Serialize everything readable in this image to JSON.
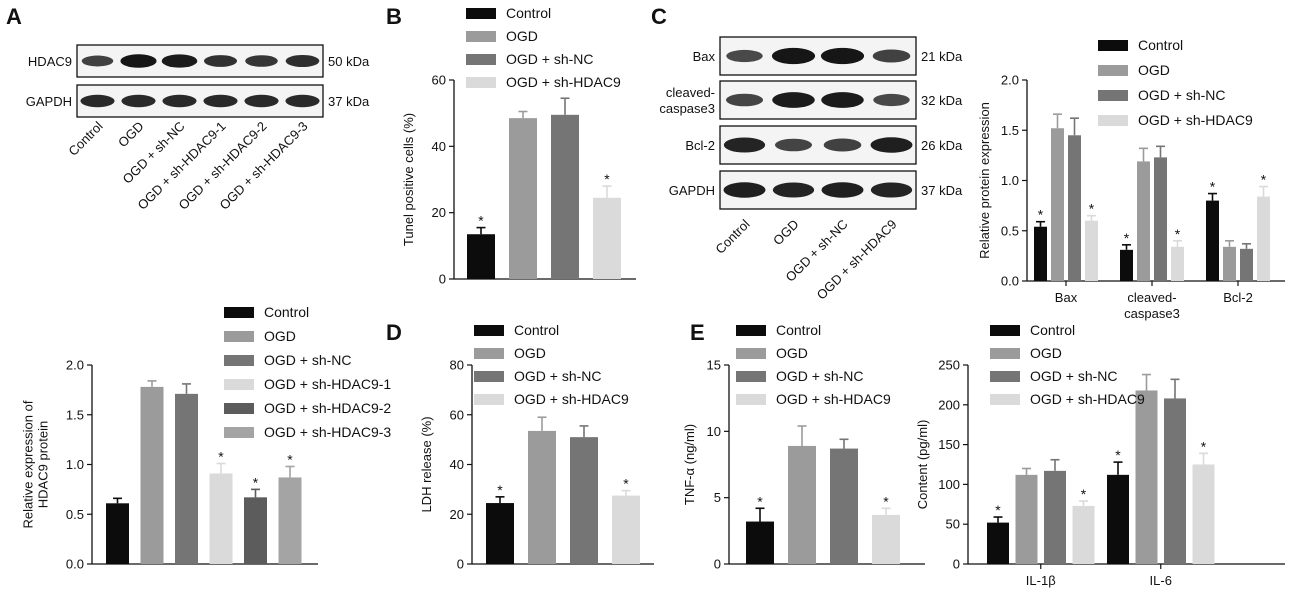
{
  "panels": {
    "A": "A",
    "B": "B",
    "C": "C",
    "D": "D",
    "E": "E"
  },
  "colors": {
    "Control": "#0c0c0c",
    "OGD": "#9b9b9b",
    "OGD + sh-NC": "#757575",
    "OGD + sh-HDAC9": "#dadada",
    "OGD + sh-HDAC9-1": "#dadada",
    "OGD + sh-HDAC9-2": "#5c5c5c",
    "OGD + sh-HDAC9-3": "#a4a4a4"
  },
  "blots": {
    "A": {
      "rows": [
        {
          "label": "HDAC9",
          "kda": "50 kDa"
        },
        {
          "label": "GAPDH",
          "kda": "37 kDa"
        }
      ],
      "lanes": [
        "Control",
        "OGD",
        "OGD + sh-NC",
        "OGD + sh-HDAC9-1",
        "OGD + sh-HDAC9-2",
        "OGD + sh-HDAC9-3"
      ]
    },
    "C": {
      "rows": [
        {
          "label": "Bax",
          "kda": "21 kDa"
        },
        {
          "label": "cleaved-caspase3",
          "kda": "32 kDa"
        },
        {
          "label": "Bcl-2",
          "kda": "26 kDa"
        },
        {
          "label": "GAPDH",
          "kda": "37 kDa"
        }
      ],
      "lanes": [
        "Control",
        "OGD",
        "OGD + sh-NC",
        "OGD + sh-HDAC9"
      ]
    }
  },
  "chart_data": [
    {
      "id": "A_bar",
      "type": "bar",
      "title": "",
      "categories": [
        "Control",
        "OGD",
        "OGD + sh-NC",
        "OGD + sh-HDAC9-1",
        "OGD + sh-HDAC9-2",
        "OGD + sh-HDAC9-3"
      ],
      "values": [
        0.61,
        1.78,
        1.71,
        0.91,
        0.67,
        0.87
      ],
      "errors": [
        0.05,
        0.06,
        0.1,
        0.1,
        0.08,
        0.11
      ],
      "significant": [
        false,
        false,
        false,
        true,
        true,
        true
      ],
      "xlabel": "",
      "ylabel": "Relative expression of HDAC9 protein",
      "ylim": [
        0,
        2.0
      ],
      "yticks": [
        "0.0",
        "0.5",
        "1.0",
        "1.5",
        "2.0"
      ],
      "legend": [
        "Control",
        "OGD",
        "OGD + sh-NC",
        "OGD + sh-HDAC9-1",
        "OGD + sh-HDAC9-2",
        "OGD + sh-HDAC9-3"
      ],
      "legend_position": "top-right"
    },
    {
      "id": "B_bar",
      "type": "bar",
      "title": "",
      "categories": [
        "Control",
        "OGD",
        "OGD + sh-NC",
        "OGD + sh-HDAC9"
      ],
      "values": [
        13.5,
        48.5,
        49.5,
        24.5
      ],
      "errors": [
        2.0,
        2.0,
        5.0,
        3.5
      ],
      "significant": [
        true,
        false,
        false,
        true
      ],
      "xlabel": "",
      "ylabel": "Tunel positive cells (%)",
      "ylim": [
        0,
        60
      ],
      "yticks": [
        "0",
        "20",
        "40",
        "60"
      ],
      "legend": [
        "Control",
        "OGD",
        "OGD + sh-NC",
        "OGD + sh-HDAC9"
      ],
      "legend_position": "top"
    },
    {
      "id": "C_bar",
      "type": "bar",
      "title": "",
      "categories": [
        "Bax",
        "cleaved-caspase3",
        "Bcl-2"
      ],
      "series": [
        {
          "name": "Control",
          "values": [
            0.54,
            0.31,
            0.8
          ],
          "errors": [
            0.05,
            0.05,
            0.07
          ],
          "significant": [
            true,
            true,
            true
          ]
        },
        {
          "name": "OGD",
          "values": [
            1.52,
            1.19,
            0.34
          ],
          "errors": [
            0.14,
            0.13,
            0.06
          ],
          "significant": [
            false,
            false,
            false
          ]
        },
        {
          "name": "OGD + sh-NC",
          "values": [
            1.45,
            1.23,
            0.32
          ],
          "errors": [
            0.17,
            0.11,
            0.05
          ],
          "significant": [
            false,
            false,
            false
          ]
        },
        {
          "name": "OGD + sh-HDAC9",
          "values": [
            0.6,
            0.34,
            0.84
          ],
          "errors": [
            0.05,
            0.06,
            0.1
          ],
          "significant": [
            true,
            true,
            true
          ]
        }
      ],
      "xlabel": "",
      "ylabel": "Relative protein expression",
      "ylim": [
        0,
        2.0
      ],
      "yticks": [
        "0.0",
        "0.5",
        "1.0",
        "1.5",
        "2.0"
      ],
      "legend_position": "top-right"
    },
    {
      "id": "D_bar",
      "type": "bar",
      "title": "",
      "categories": [
        "Control",
        "OGD",
        "OGD + sh-NC",
        "OGD + sh-HDAC9"
      ],
      "values": [
        24.5,
        53.5,
        51.0,
        27.5
      ],
      "errors": [
        2.5,
        5.5,
        4.5,
        2.0
      ],
      "significant": [
        true,
        false,
        false,
        true
      ],
      "xlabel": "",
      "ylabel": "LDH release (%)",
      "ylim": [
        0,
        80
      ],
      "yticks": [
        "0",
        "20",
        "40",
        "60",
        "80"
      ],
      "legend": [
        "Control",
        "OGD",
        "OGD + sh-NC",
        "OGD + sh-HDAC9"
      ],
      "legend_position": "top"
    },
    {
      "id": "E_tnf",
      "type": "bar",
      "title": "",
      "categories": [
        "Control",
        "OGD",
        "OGD + sh-NC",
        "OGD + sh-HDAC9"
      ],
      "values": [
        3.2,
        8.9,
        8.7,
        3.7
      ],
      "errors": [
        1.0,
        1.5,
        0.7,
        0.5
      ],
      "significant": [
        true,
        false,
        false,
        true
      ],
      "xlabel": "",
      "ylabel": "TNF-α (ng/ml)",
      "ylim": [
        0,
        15
      ],
      "yticks": [
        "0",
        "5",
        "10",
        "15"
      ],
      "legend": [
        "Control",
        "OGD",
        "OGD + sh-NC",
        "OGD + sh-HDAC9"
      ],
      "legend_position": "top"
    },
    {
      "id": "E_il",
      "type": "bar",
      "title": "",
      "categories": [
        "IL-1β",
        "IL-6"
      ],
      "series": [
        {
          "name": "Control",
          "values": [
            52,
            112
          ],
          "errors": [
            7,
            16
          ],
          "significant": [
            true,
            true
          ]
        },
        {
          "name": "OGD",
          "values": [
            112,
            218
          ],
          "errors": [
            8,
            20
          ],
          "significant": [
            false,
            false
          ]
        },
        {
          "name": "OGD + sh-NC",
          "values": [
            117,
            208
          ],
          "errors": [
            14,
            24
          ],
          "significant": [
            false,
            false
          ]
        },
        {
          "name": "OGD + sh-HDAC9",
          "values": [
            73,
            125
          ],
          "errors": [
            6,
            14
          ],
          "significant": [
            true,
            true
          ]
        }
      ],
      "xlabel": "",
      "ylabel": "Content (pg/ml)",
      "ylim": [
        0,
        250
      ],
      "yticks": [
        "0",
        "50",
        "100",
        "150",
        "200",
        "250"
      ],
      "legend_position": "top-right"
    }
  ]
}
